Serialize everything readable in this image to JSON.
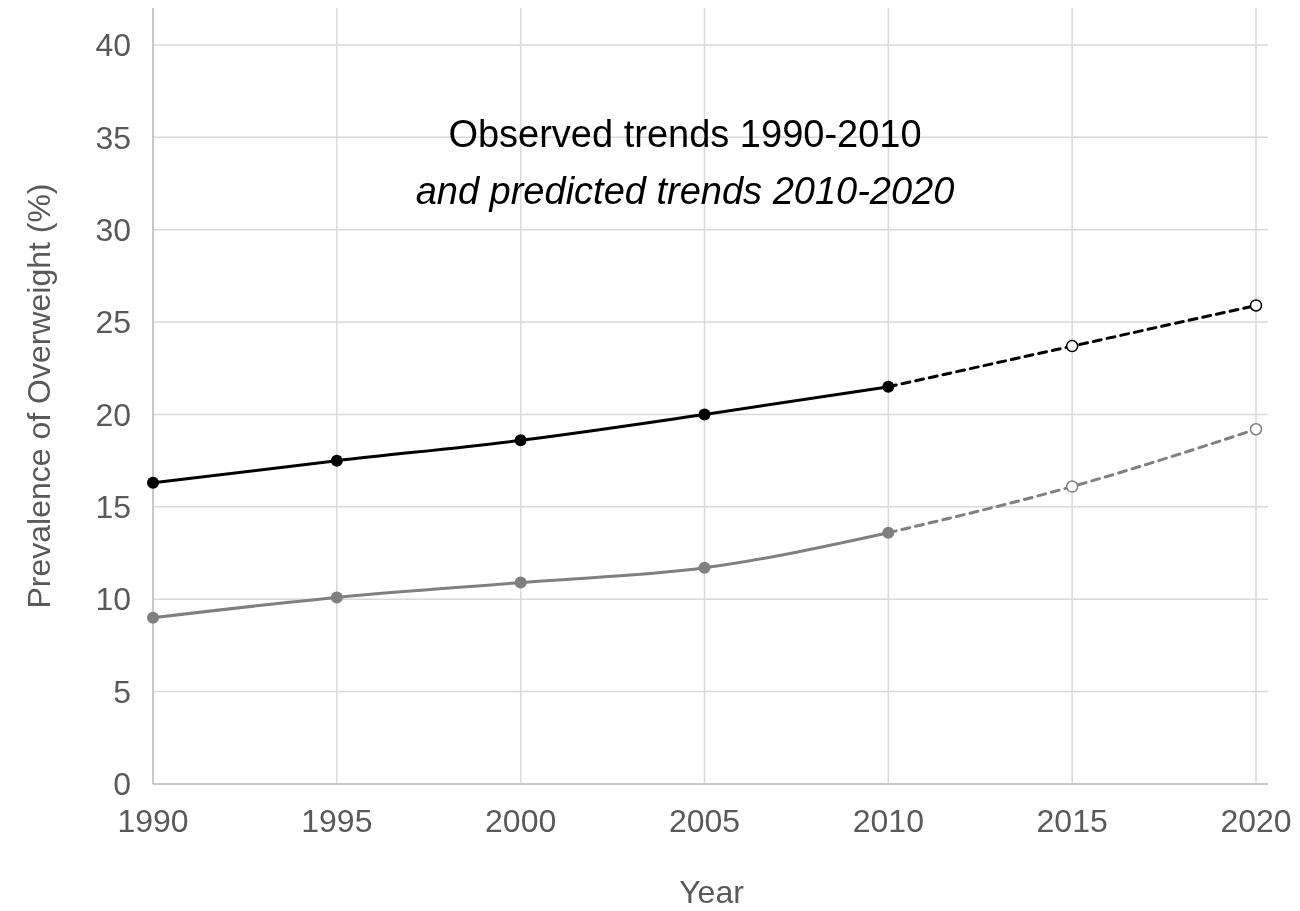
{
  "chart_data": {
    "type": "line",
    "title": "Observed trends 1990-2010",
    "subtitle": "and predicted trends 2010-2020",
    "xlabel": "Year",
    "ylabel": "Prevalence of Overweight (%)",
    "xlim": [
      1990,
      2020
    ],
    "xticks": [
      1990,
      1995,
      2000,
      2005,
      2010,
      2015,
      2020
    ],
    "ylim": [
      0,
      42
    ],
    "yticks": [
      0,
      5,
      10,
      15,
      20,
      25,
      30,
      35,
      40
    ],
    "grid": true,
    "series": [
      {
        "color": "#000000",
        "x": [
          2010,
          2015,
          2020
        ],
        "values": [
          21.5,
          23.7,
          25.9
        ],
        "line_style": "dashed",
        "marker": "circle"
      },
      {
        "color": "#808080",
        "x": [
          2010,
          2015,
          2020
        ],
        "values": [
          13.6,
          16.1,
          19.2
        ],
        "line_style": "dashed",
        "marker": "circle"
      },
      {
        "color": "#000000",
        "x": [
          1990,
          1995,
          2000,
          2005,
          2010
        ],
        "values": [
          16.3,
          17.5,
          18.6,
          20.0,
          21.5
        ],
        "line_style": "solid",
        "marker": "circle"
      },
      {
        "color": "#808080",
        "x": [
          1990,
          1995,
          2000,
          2005,
          2010
        ],
        "values": [
          9.0,
          10.1,
          10.9,
          11.7,
          13.6
        ],
        "line_style": "solid",
        "marker": "circle"
      }
    ]
  }
}
